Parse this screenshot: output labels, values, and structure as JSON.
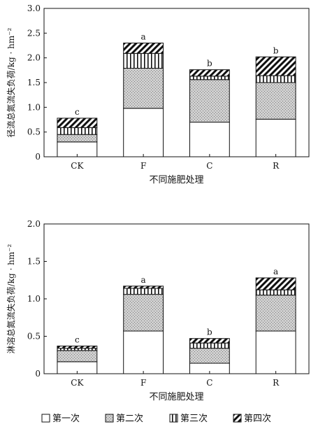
{
  "chart_data": [
    {
      "type": "bar",
      "stacked": true,
      "categories": [
        "CK",
        "F",
        "C",
        "R"
      ],
      "series": [
        {
          "name": "第一次",
          "values": [
            0.3,
            0.98,
            0.7,
            0.76
          ]
        },
        {
          "name": "第二次",
          "values": [
            0.15,
            0.81,
            0.86,
            0.74
          ]
        },
        {
          "name": "第三次",
          "values": [
            0.14,
            0.3,
            0.07,
            0.14
          ]
        },
        {
          "name": "第四次",
          "values": [
            0.19,
            0.21,
            0.13,
            0.38
          ]
        }
      ],
      "significance": [
        "c",
        "a",
        "b",
        "b"
      ],
      "ylabel": "径流总氮流失负荷/kg · hm⁻²",
      "xlabel": "不同施肥处理",
      "ylim": [
        0,
        3.0
      ],
      "yticks": [
        "0",
        "0.5",
        "1.0",
        "1.5",
        "2.0",
        "2.5",
        "3.0"
      ]
    },
    {
      "type": "bar",
      "stacked": true,
      "categories": [
        "CK",
        "F",
        "C",
        "R"
      ],
      "series": [
        {
          "name": "第一次",
          "values": [
            0.16,
            0.57,
            0.14,
            0.57
          ]
        },
        {
          "name": "第二次",
          "values": [
            0.15,
            0.49,
            0.2,
            0.48
          ]
        },
        {
          "name": "第三次",
          "values": [
            0.03,
            0.08,
            0.07,
            0.07
          ]
        },
        {
          "name": "第四次",
          "values": [
            0.03,
            0.03,
            0.06,
            0.16
          ]
        }
      ],
      "significance": [
        "c",
        "a",
        "b",
        "a"
      ],
      "ylabel": "淋溶总氮流失负荷/kg · hm⁻²",
      "xlabel": "不同施肥处理",
      "ylim": [
        0,
        2.0
      ],
      "yticks": [
        "0",
        "0.5",
        "1.0",
        "1.5",
        "2.0"
      ]
    }
  ],
  "legend": {
    "items": [
      {
        "label": "第一次",
        "pattern": "white"
      },
      {
        "label": "第二次",
        "pattern": "crosshatch"
      },
      {
        "label": "第三次",
        "pattern": "vertical-stripes"
      },
      {
        "label": "第四次",
        "pattern": "diagonal-stripes"
      }
    ]
  }
}
